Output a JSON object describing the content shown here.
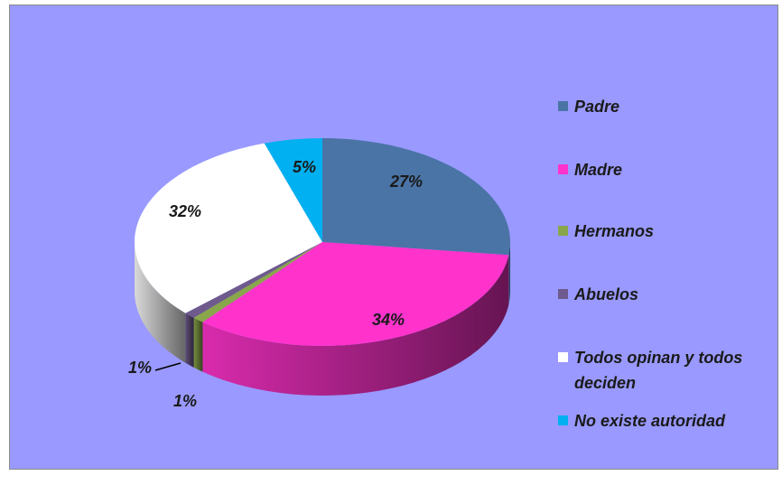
{
  "chart_data": {
    "type": "pie",
    "categories": [
      "Padre",
      "Madre",
      "Hermanos",
      "Abuelos",
      "Todos opinan y todos deciden",
      "No existe autoridad"
    ],
    "values": [
      27,
      34,
      1,
      1,
      32,
      5
    ],
    "value_labels": [
      "27%",
      "34%",
      "1%",
      "1%",
      "32%",
      "5%"
    ],
    "colors": [
      "#4a74a6",
      "#ff33cc",
      "#8aa64a",
      "#6e5a8c",
      "#ffffff",
      "#00b0f0"
    ],
    "legend": "right"
  }
}
